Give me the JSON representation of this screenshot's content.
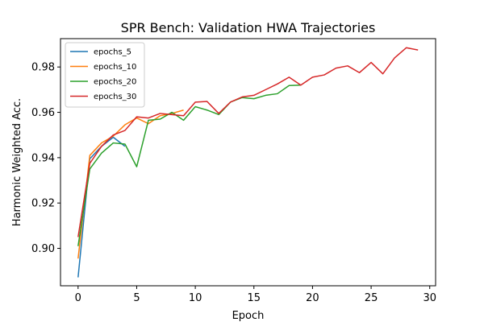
{
  "chart_data": {
    "type": "line",
    "title": "SPR Bench: Validation HWA Trajectories",
    "xlabel": "Epoch",
    "ylabel": "Harmonic Weighted Acc.",
    "xlim": [
      -1.5,
      30.5
    ],
    "ylim": [
      0.8835,
      0.9925
    ],
    "xticks": [
      0,
      5,
      10,
      15,
      20,
      25,
      30
    ],
    "yticks": [
      0.9,
      0.92,
      0.94,
      0.96,
      0.98
    ],
    "ytick_labels": [
      "0.90",
      "0.92",
      "0.94",
      "0.96",
      "0.98"
    ],
    "grid": false,
    "legend_position": "top-left",
    "series": [
      {
        "name": "epochs_5",
        "color": "#1f77b4",
        "x": [
          0,
          1,
          2,
          3,
          4
        ],
        "y": [
          0.8872,
          0.9395,
          0.945,
          0.949,
          0.945
        ]
      },
      {
        "name": "epochs_10",
        "color": "#ff7f0e",
        "x": [
          0,
          1,
          2,
          3,
          4,
          5,
          6,
          7,
          8,
          9
        ],
        "y": [
          0.8955,
          0.941,
          0.9465,
          0.9495,
          0.9545,
          0.9575,
          0.955,
          0.9585,
          0.9595,
          0.961
        ]
      },
      {
        "name": "epochs_20",
        "color": "#2ca02c",
        "x": [
          0,
          1,
          2,
          3,
          4,
          5,
          6,
          7,
          8,
          9,
          10,
          11,
          12,
          13,
          14,
          15,
          16,
          17,
          18,
          19
        ],
        "y": [
          0.901,
          0.935,
          0.942,
          0.9465,
          0.946,
          0.936,
          0.9565,
          0.957,
          0.96,
          0.9565,
          0.9625,
          0.961,
          0.959,
          0.9645,
          0.9665,
          0.966,
          0.9675,
          0.9682,
          0.9718,
          0.972
        ]
      },
      {
        "name": "epochs_30",
        "color": "#d62728",
        "x": [
          0,
          1,
          2,
          3,
          4,
          5,
          6,
          7,
          8,
          9,
          10,
          11,
          12,
          13,
          14,
          15,
          16,
          17,
          18,
          19,
          20,
          21,
          22,
          23,
          24,
          25,
          26,
          27,
          28,
          29
        ],
        "y": [
          0.905,
          0.9375,
          0.945,
          0.95,
          0.952,
          0.958,
          0.9575,
          0.9595,
          0.959,
          0.9585,
          0.9645,
          0.9648,
          0.9595,
          0.9645,
          0.9668,
          0.9675,
          0.97,
          0.9725,
          0.9755,
          0.972,
          0.9755,
          0.9765,
          0.9795,
          0.9805,
          0.9775,
          0.982,
          0.977,
          0.984,
          0.9885,
          0.9875
        ]
      }
    ]
  }
}
